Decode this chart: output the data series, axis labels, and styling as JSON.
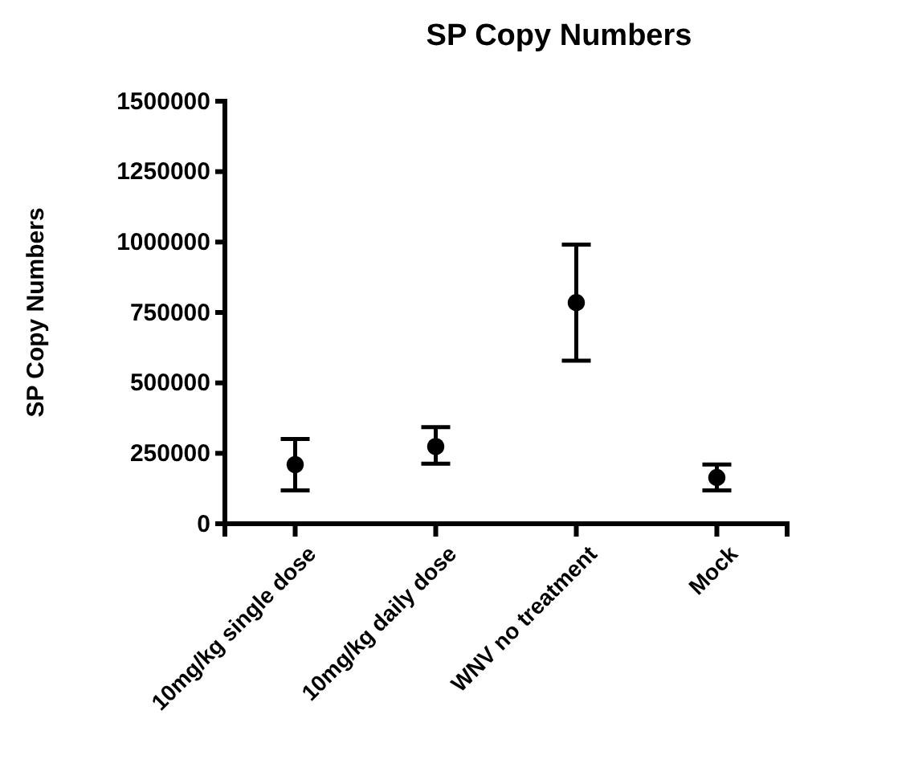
{
  "chart_data": {
    "type": "scatter",
    "title": "SP Copy Numbers",
    "ylabel": "SP Copy Numbers",
    "categories": [
      "10mg/kg single dose",
      "10mg/kg daily dose",
      "WNV no treatment",
      "Mock"
    ],
    "values": [
      210000,
      274000,
      785000,
      164000
    ],
    "errors": [
      [
        118000,
        301000
      ],
      [
        213000,
        343000
      ],
      [
        579000,
        991000
      ],
      [
        118000,
        210000
      ]
    ],
    "color": "#000000",
    "marker": "circle",
    "ylim": [
      0,
      1500000
    ],
    "yticks": [
      0,
      250000,
      500000,
      750000,
      1000000,
      1250000,
      1500000
    ]
  }
}
